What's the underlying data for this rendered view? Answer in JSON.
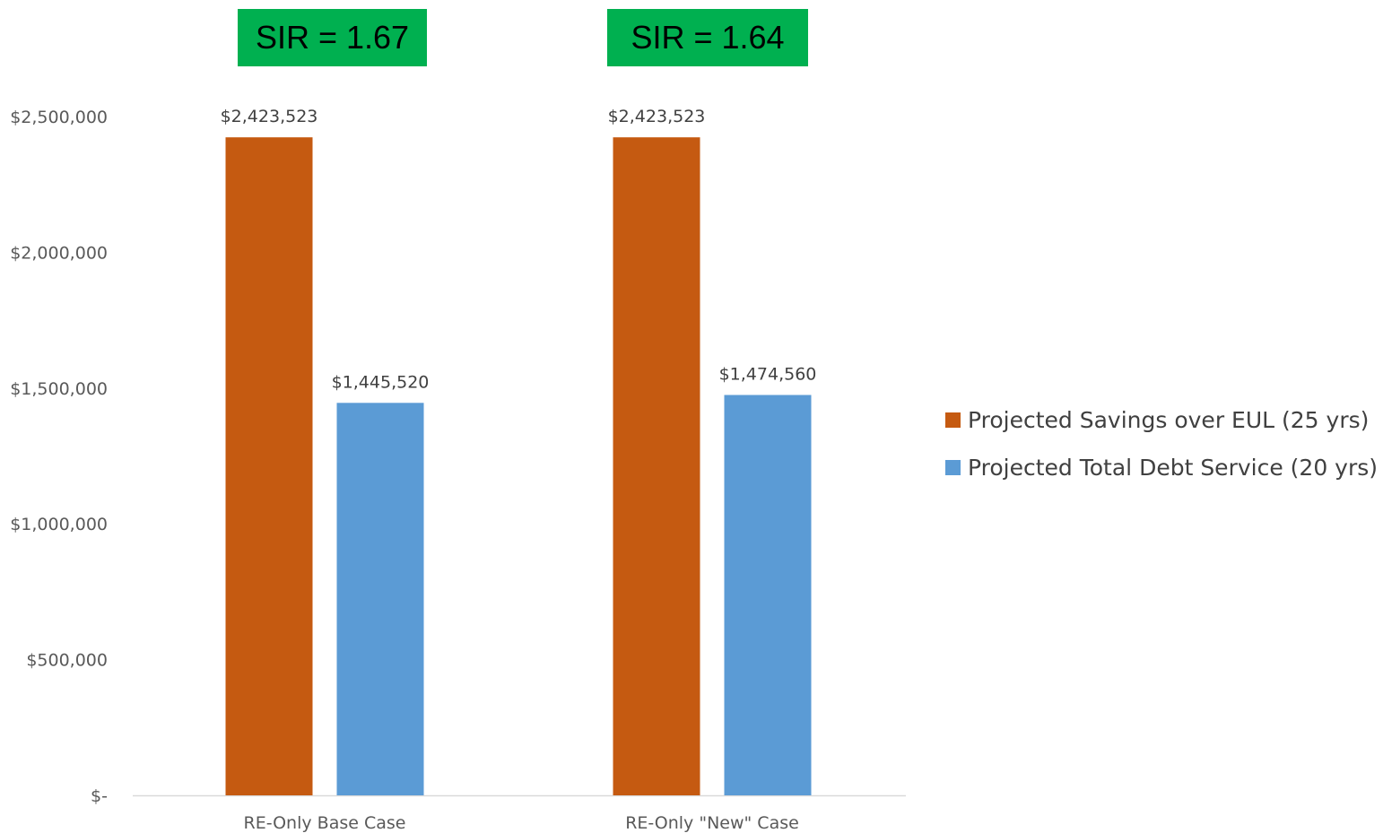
{
  "annotations": [
    {
      "text": "SIR = 1.67"
    },
    {
      "text": "SIR = 1.64"
    }
  ],
  "colors": {
    "sir_box": "#00b050",
    "series_savings": "#c55a11",
    "series_debt": "#5b9bd5",
    "axis_line": "#d9d9d9"
  },
  "chart_data": {
    "type": "bar",
    "title": "",
    "xlabel": "",
    "ylabel": "",
    "categories": [
      "RE-Only Base Case",
      "RE-Only \"New\" Case"
    ],
    "series": [
      {
        "name": "Projected Savings over EUL (25 yrs)",
        "color": "#c55a11",
        "values": [
          2423523,
          2423523
        ],
        "labels": [
          "$2,423,523",
          "$2,423,523"
        ]
      },
      {
        "name": "Projected Total Debt Service (20 yrs)",
        "color": "#5b9bd5",
        "values": [
          1445520,
          1474560
        ],
        "labels": [
          "$1,445,520",
          "$1,474,560"
        ]
      }
    ],
    "ylim": [
      0,
      2500000
    ],
    "yticks": [
      0,
      500000,
      1000000,
      1500000,
      2000000,
      2500000
    ],
    "ytick_labels": [
      "$-",
      "$500,000",
      "$1,000,000",
      "$1,500,000",
      "$2,000,000",
      "$2,500,000"
    ],
    "grid": false,
    "legend_position": "right"
  }
}
